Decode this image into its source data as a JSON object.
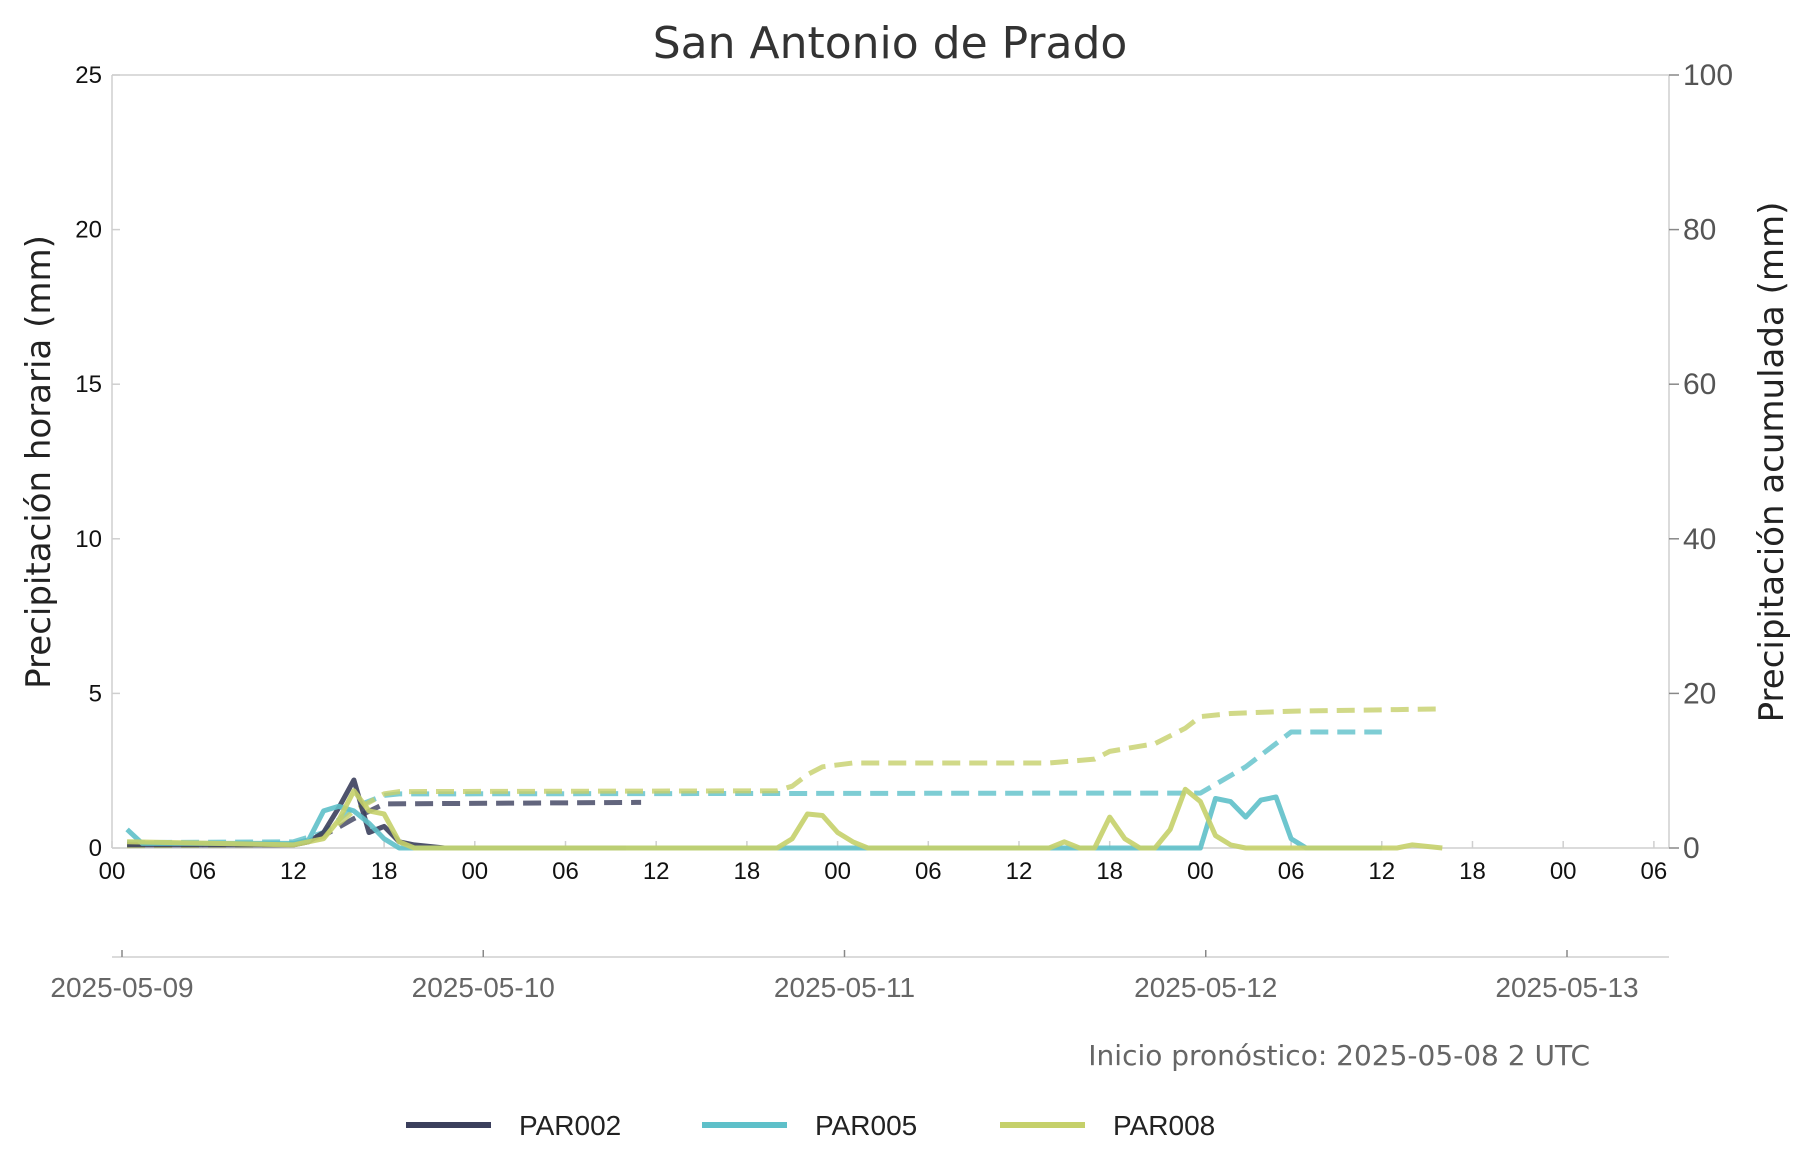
{
  "chart_data": {
    "type": "line",
    "title": "San Antonio de Prado",
    "ylabel_left": "Precipitación horaria (mm)",
    "ylabel_right": "Precipitación acumulada (mm)",
    "ylim_left": [
      0,
      25
    ],
    "ylim_right": [
      0,
      100
    ],
    "yticks_left": [
      "0",
      "5",
      "10",
      "15",
      "20",
      "25"
    ],
    "yticks_right": [
      "0",
      "20",
      "40",
      "60",
      "80",
      "100"
    ],
    "xlim": [
      "2025-05-09 00:00",
      "2025-05-13 07:00"
    ],
    "hour_ticks": [
      "00",
      "06",
      "12",
      "18",
      "00",
      "06",
      "12",
      "18",
      "00",
      "06",
      "12",
      "18",
      "00",
      "06",
      "12",
      "18",
      "00",
      "06"
    ],
    "date_ticks": [
      "2025-05-09",
      "2025-05-10",
      "2025-05-11",
      "2025-05-12",
      "2025-05-13"
    ],
    "annotation": "Inicio pronóstico: 2025-05-08 2 UTC",
    "grid": false,
    "legend_position": "bottom-center",
    "series": [
      {
        "name": "PAR002",
        "color": "#3b3f5c",
        "hourly": [
          [
            "2025-05-09 01:00",
            0.1
          ],
          [
            "2025-05-09 12:00",
            0.1
          ],
          [
            "2025-05-09 13:00",
            0.2
          ],
          [
            "2025-05-09 14:00",
            0.5
          ],
          [
            "2025-05-09 15:00",
            1.3
          ],
          [
            "2025-05-09 16:00",
            2.2
          ],
          [
            "2025-05-09 17:00",
            0.5
          ],
          [
            "2025-05-09 18:00",
            0.7
          ],
          [
            "2025-05-09 19:00",
            0.2
          ],
          [
            "2025-05-09 20:00",
            0.1
          ],
          [
            "2025-05-09 22:00",
            0.0
          ],
          [
            "2025-05-10 10:00",
            0.0
          ]
        ],
        "accumulated": [
          [
            "2025-05-09 01:00",
            0.5
          ],
          [
            "2025-05-09 12:00",
            0.5
          ],
          [
            "2025-05-09 14:00",
            1.6
          ],
          [
            "2025-05-09 16:00",
            3.8
          ],
          [
            "2025-05-09 18:00",
            5.7
          ],
          [
            "2025-05-10 11:00",
            5.9
          ]
        ]
      },
      {
        "name": "PAR005",
        "color": "#5ec0c9",
        "hourly": [
          [
            "2025-05-09 01:00",
            0.6
          ],
          [
            "2025-05-09 02:00",
            0.15
          ],
          [
            "2025-05-09 12:00",
            0.15
          ],
          [
            "2025-05-09 13:00",
            0.25
          ],
          [
            "2025-05-09 14:00",
            1.2
          ],
          [
            "2025-05-09 15:00",
            1.35
          ],
          [
            "2025-05-09 16:00",
            1.2
          ],
          [
            "2025-05-09 17:00",
            0.8
          ],
          [
            "2025-05-09 18:00",
            0.3
          ],
          [
            "2025-05-09 19:00",
            0.0
          ],
          [
            "2025-05-12 00:00",
            0.0
          ],
          [
            "2025-05-12 01:00",
            1.6
          ],
          [
            "2025-05-12 02:00",
            1.5
          ],
          [
            "2025-05-12 03:00",
            1.0
          ],
          [
            "2025-05-12 04:00",
            1.55
          ],
          [
            "2025-05-12 05:00",
            1.65
          ],
          [
            "2025-05-12 06:00",
            0.3
          ],
          [
            "2025-05-12 07:00",
            0.0
          ],
          [
            "2025-05-12 12:00",
            0.0
          ]
        ],
        "accumulated": [
          [
            "2025-05-09 01:00",
            0.7
          ],
          [
            "2025-05-09 12:00",
            0.8
          ],
          [
            "2025-05-09 14:00",
            2.0
          ],
          [
            "2025-05-09 16:00",
            5.3
          ],
          [
            "2025-05-09 18:00",
            6.8
          ],
          [
            "2025-05-09 19:00",
            7.0
          ],
          [
            "2025-05-11 18:00",
            7.1
          ],
          [
            "2025-05-12 00:00",
            7.1
          ],
          [
            "2025-05-12 03:00",
            10.5
          ],
          [
            "2025-05-12 05:00",
            13.5
          ],
          [
            "2025-05-12 06:00",
            15.0
          ],
          [
            "2025-05-12 12:00",
            15.0
          ]
        ]
      },
      {
        "name": "PAR008",
        "color": "#c5d06a",
        "hourly": [
          [
            "2025-05-09 01:00",
            0.2
          ],
          [
            "2025-05-09 12:00",
            0.1
          ],
          [
            "2025-05-09 13:00",
            0.2
          ],
          [
            "2025-05-09 14:00",
            0.3
          ],
          [
            "2025-05-09 15:00",
            0.9
          ],
          [
            "2025-05-09 16:00",
            1.85
          ],
          [
            "2025-05-09 17:00",
            1.2
          ],
          [
            "2025-05-09 18:00",
            1.1
          ],
          [
            "2025-05-09 19:00",
            0.2
          ],
          [
            "2025-05-09 20:00",
            0.0
          ],
          [
            "2025-05-10 20:00",
            0.0
          ],
          [
            "2025-05-10 21:00",
            0.3
          ],
          [
            "2025-05-10 22:00",
            1.1
          ],
          [
            "2025-05-10 23:00",
            1.05
          ],
          [
            "2025-05-11 00:00",
            0.5
          ],
          [
            "2025-05-11 01:00",
            0.2
          ],
          [
            "2025-05-11 02:00",
            0.0
          ],
          [
            "2025-05-11 14:00",
            0.0
          ],
          [
            "2025-05-11 15:00",
            0.2
          ],
          [
            "2025-05-11 16:00",
            0.0
          ],
          [
            "2025-05-11 17:00",
            0.0
          ],
          [
            "2025-05-11 18:00",
            1.0
          ],
          [
            "2025-05-11 19:00",
            0.3
          ],
          [
            "2025-05-11 20:00",
            0.0
          ],
          [
            "2025-05-11 21:00",
            0.0
          ],
          [
            "2025-05-11 22:00",
            0.6
          ],
          [
            "2025-05-11 23:00",
            1.9
          ],
          [
            "2025-05-12 00:00",
            1.5
          ],
          [
            "2025-05-12 01:00",
            0.4
          ],
          [
            "2025-05-12 02:00",
            0.1
          ],
          [
            "2025-05-12 03:00",
            0.0
          ],
          [
            "2025-05-12 13:00",
            0.0
          ],
          [
            "2025-05-12 14:00",
            0.1
          ],
          [
            "2025-05-12 16:00",
            0.0
          ]
        ],
        "accumulated": [
          [
            "2025-05-09 01:00",
            0.3
          ],
          [
            "2025-05-09 12:00",
            0.4
          ],
          [
            "2025-05-09 14:00",
            1.5
          ],
          [
            "2025-05-09 16:00",
            4.8
          ],
          [
            "2025-05-09 18:00",
            7.0
          ],
          [
            "2025-05-09 19:00",
            7.3
          ],
          [
            "2025-05-10 20:00",
            7.4
          ],
          [
            "2025-05-10 21:00",
            8.0
          ],
          [
            "2025-05-10 22:00",
            9.5
          ],
          [
            "2025-05-10 23:00",
            10.5
          ],
          [
            "2025-05-11 01:00",
            11.0
          ],
          [
            "2025-05-11 14:00",
            11.0
          ],
          [
            "2025-05-11 17:00",
            11.5
          ],
          [
            "2025-05-11 18:00",
            12.5
          ],
          [
            "2025-05-11 21:00",
            13.5
          ],
          [
            "2025-05-11 23:00",
            15.5
          ],
          [
            "2025-05-12 00:00",
            17.0
          ],
          [
            "2025-05-12 02:00",
            17.4
          ],
          [
            "2025-05-12 06:00",
            17.7
          ],
          [
            "2025-05-12 16:00",
            18.0
          ]
        ]
      }
    ]
  }
}
